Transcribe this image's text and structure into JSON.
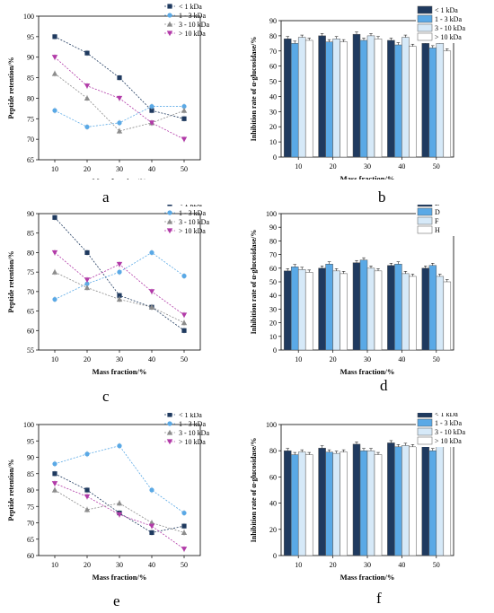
{
  "colors": {
    "lt1": "#1f3a5f",
    "r1_3": "#5aa9e6",
    "r3_10": "#8c8c8c",
    "gt10": "#b23aa8",
    "bar_b": "#1f3a5f",
    "bar_d": "#5aa9e6",
    "bar_f": "#d6e9f8",
    "bar_h": "#ffffff"
  },
  "panels": [
    {
      "letter": "a"
    },
    {
      "letter": "b"
    },
    {
      "letter": "c"
    },
    {
      "letter": "d"
    },
    {
      "letter": "e"
    },
    {
      "letter": "f"
    }
  ],
  "chart_data": [
    {
      "panel": "a",
      "type": "line",
      "xlabel": "Mass fraction/%",
      "ylabel": "Peptide retention/%",
      "x": [
        10,
        20,
        30,
        40,
        50
      ],
      "ylim": [
        65,
        100
      ],
      "yticks": [
        65,
        70,
        75,
        80,
        85,
        90,
        95,
        100
      ],
      "legend_position": "top-right",
      "series": [
        {
          "name": "< 1 kDa",
          "marker": "square",
          "color_key": "lt1",
          "values": [
            95,
            91,
            85,
            77,
            75
          ]
        },
        {
          "name": "1 - 3 kDa",
          "marker": "circle",
          "color_key": "r1_3",
          "values": [
            77,
            73,
            74,
            78,
            78
          ]
        },
        {
          "name": "3 - 10 kDa",
          "marker": "triangle-up",
          "color_key": "r3_10",
          "values": [
            86,
            80,
            72,
            74,
            77
          ]
        },
        {
          "name": "> 10 kDa",
          "marker": "triangle-down",
          "color_key": "gt10",
          "values": [
            90,
            83,
            80,
            74,
            70
          ]
        }
      ]
    },
    {
      "panel": "b",
      "type": "bar",
      "xlabel": "Mass fraction/%",
      "ylabel": "Inhibition rate of α-glucosidase/%",
      "categories": [
        "10",
        "20",
        "30",
        "40",
        "50"
      ],
      "ylim": [
        0,
        90
      ],
      "yticks": [
        0,
        10,
        20,
        30,
        40,
        50,
        60,
        70,
        80,
        90
      ],
      "legend_position": "top-right",
      "series": [
        {
          "name": "< 1 kDa",
          "color_key": "bar_b",
          "values": [
            78,
            80,
            81,
            77,
            75
          ]
        },
        {
          "name": "1 - 3 kDa",
          "color_key": "bar_d",
          "values": [
            75,
            76,
            77,
            74,
            72
          ]
        },
        {
          "name": "3 - 10 kDa",
          "color_key": "bar_f",
          "values": [
            79,
            78,
            80,
            79,
            75
          ]
        },
        {
          "name": "> 10 kDa",
          "color_key": "bar_h",
          "values": [
            77,
            76,
            78,
            73,
            70
          ]
        }
      ]
    },
    {
      "panel": "c",
      "type": "line",
      "xlabel": "Mass fraction/%",
      "ylabel": "Peptide retention/%",
      "x": [
        10,
        20,
        30,
        40,
        50
      ],
      "ylim": [
        55,
        90
      ],
      "yticks": [
        55,
        60,
        65,
        70,
        75,
        80,
        85,
        90
      ],
      "legend_position": "top-right",
      "series": [
        {
          "name": "< 1 kDa",
          "marker": "square",
          "color_key": "lt1",
          "values": [
            89,
            80,
            69,
            66,
            60
          ]
        },
        {
          "name": "1 - 3 kDa",
          "marker": "circle",
          "color_key": "r1_3",
          "values": [
            68,
            72,
            75,
            80,
            74
          ]
        },
        {
          "name": "3 - 10 kDa",
          "marker": "triangle-up",
          "color_key": "r3_10",
          "values": [
            75,
            71,
            68,
            66,
            62
          ]
        },
        {
          "name": "> 10 kDa",
          "marker": "triangle-down",
          "color_key": "gt10",
          "values": [
            80,
            73,
            77,
            70,
            64
          ]
        }
      ]
    },
    {
      "panel": "d",
      "type": "bar",
      "xlabel": "Mass fraction/%",
      "ylabel": "Inhibition rate of α-glucosidase/%",
      "categories": [
        "10",
        "20",
        "30",
        "40",
        "50"
      ],
      "ylim": [
        0,
        100
      ],
      "yticks": [
        0,
        10,
        20,
        30,
        40,
        50,
        60,
        70,
        80,
        90,
        100
      ],
      "legend_position": "top-right",
      "series": [
        {
          "name": "B",
          "color_key": "bar_b",
          "values": [
            58,
            60,
            64,
            62,
            60
          ]
        },
        {
          "name": "D",
          "color_key": "bar_d",
          "values": [
            61,
            63,
            66,
            63,
            62
          ]
        },
        {
          "name": "F",
          "color_key": "bar_f",
          "values": [
            59,
            58,
            60,
            56,
            54
          ]
        },
        {
          "name": "H",
          "color_key": "bar_h",
          "values": [
            57,
            56,
            58,
            54,
            50
          ]
        }
      ]
    },
    {
      "panel": "e",
      "type": "line",
      "xlabel": "Mass fraction/%",
      "ylabel": "Peptide retention/%",
      "x": [
        10,
        20,
        30,
        40,
        50
      ],
      "ylim": [
        60,
        100
      ],
      "yticks": [
        60,
        65,
        70,
        75,
        80,
        85,
        90,
        95,
        100
      ],
      "legend_position": "top-right",
      "series": [
        {
          "name": "< 1 kDa",
          "marker": "square",
          "color_key": "lt1",
          "values": [
            85,
            80,
            73,
            67,
            69
          ]
        },
        {
          "name": "1 - 3 kDa",
          "marker": "circle",
          "color_key": "r1_3",
          "values": [
            88,
            91,
            93.5,
            80,
            73
          ]
        },
        {
          "name": "3 - 10 kDa",
          "marker": "triangle-up",
          "color_key": "r3_10",
          "values": [
            80,
            74,
            76,
            70,
            67
          ]
        },
        {
          "name": "> 10 kDa",
          "marker": "triangle-down",
          "color_key": "gt10",
          "values": [
            82,
            78,
            72.5,
            69,
            62
          ]
        }
      ]
    },
    {
      "panel": "f",
      "type": "bar",
      "xlabel": "Mass fraction/%",
      "ylabel": "Inhibition rate of α-glucosidase/%",
      "categories": [
        "10",
        "20",
        "30",
        "40",
        "50"
      ],
      "ylim": [
        0,
        100
      ],
      "yticks": [
        0,
        20,
        40,
        60,
        80,
        100
      ],
      "legend_position": "top-right",
      "series": [
        {
          "name": "< 1 kDa",
          "color_key": "bar_b",
          "values": [
            80,
            82,
            85,
            86,
            84
          ]
        },
        {
          "name": "1 - 3 kDa",
          "color_key": "bar_d",
          "values": [
            77,
            79,
            80,
            83,
            80
          ]
        },
        {
          "name": "3 - 10 kDa",
          "color_key": "bar_f",
          "values": [
            79,
            78,
            80,
            84,
            85
          ]
        },
        {
          "name": "> 10 kDa",
          "color_key": "bar_h",
          "values": [
            77,
            79,
            77,
            83,
            84
          ]
        }
      ]
    }
  ]
}
